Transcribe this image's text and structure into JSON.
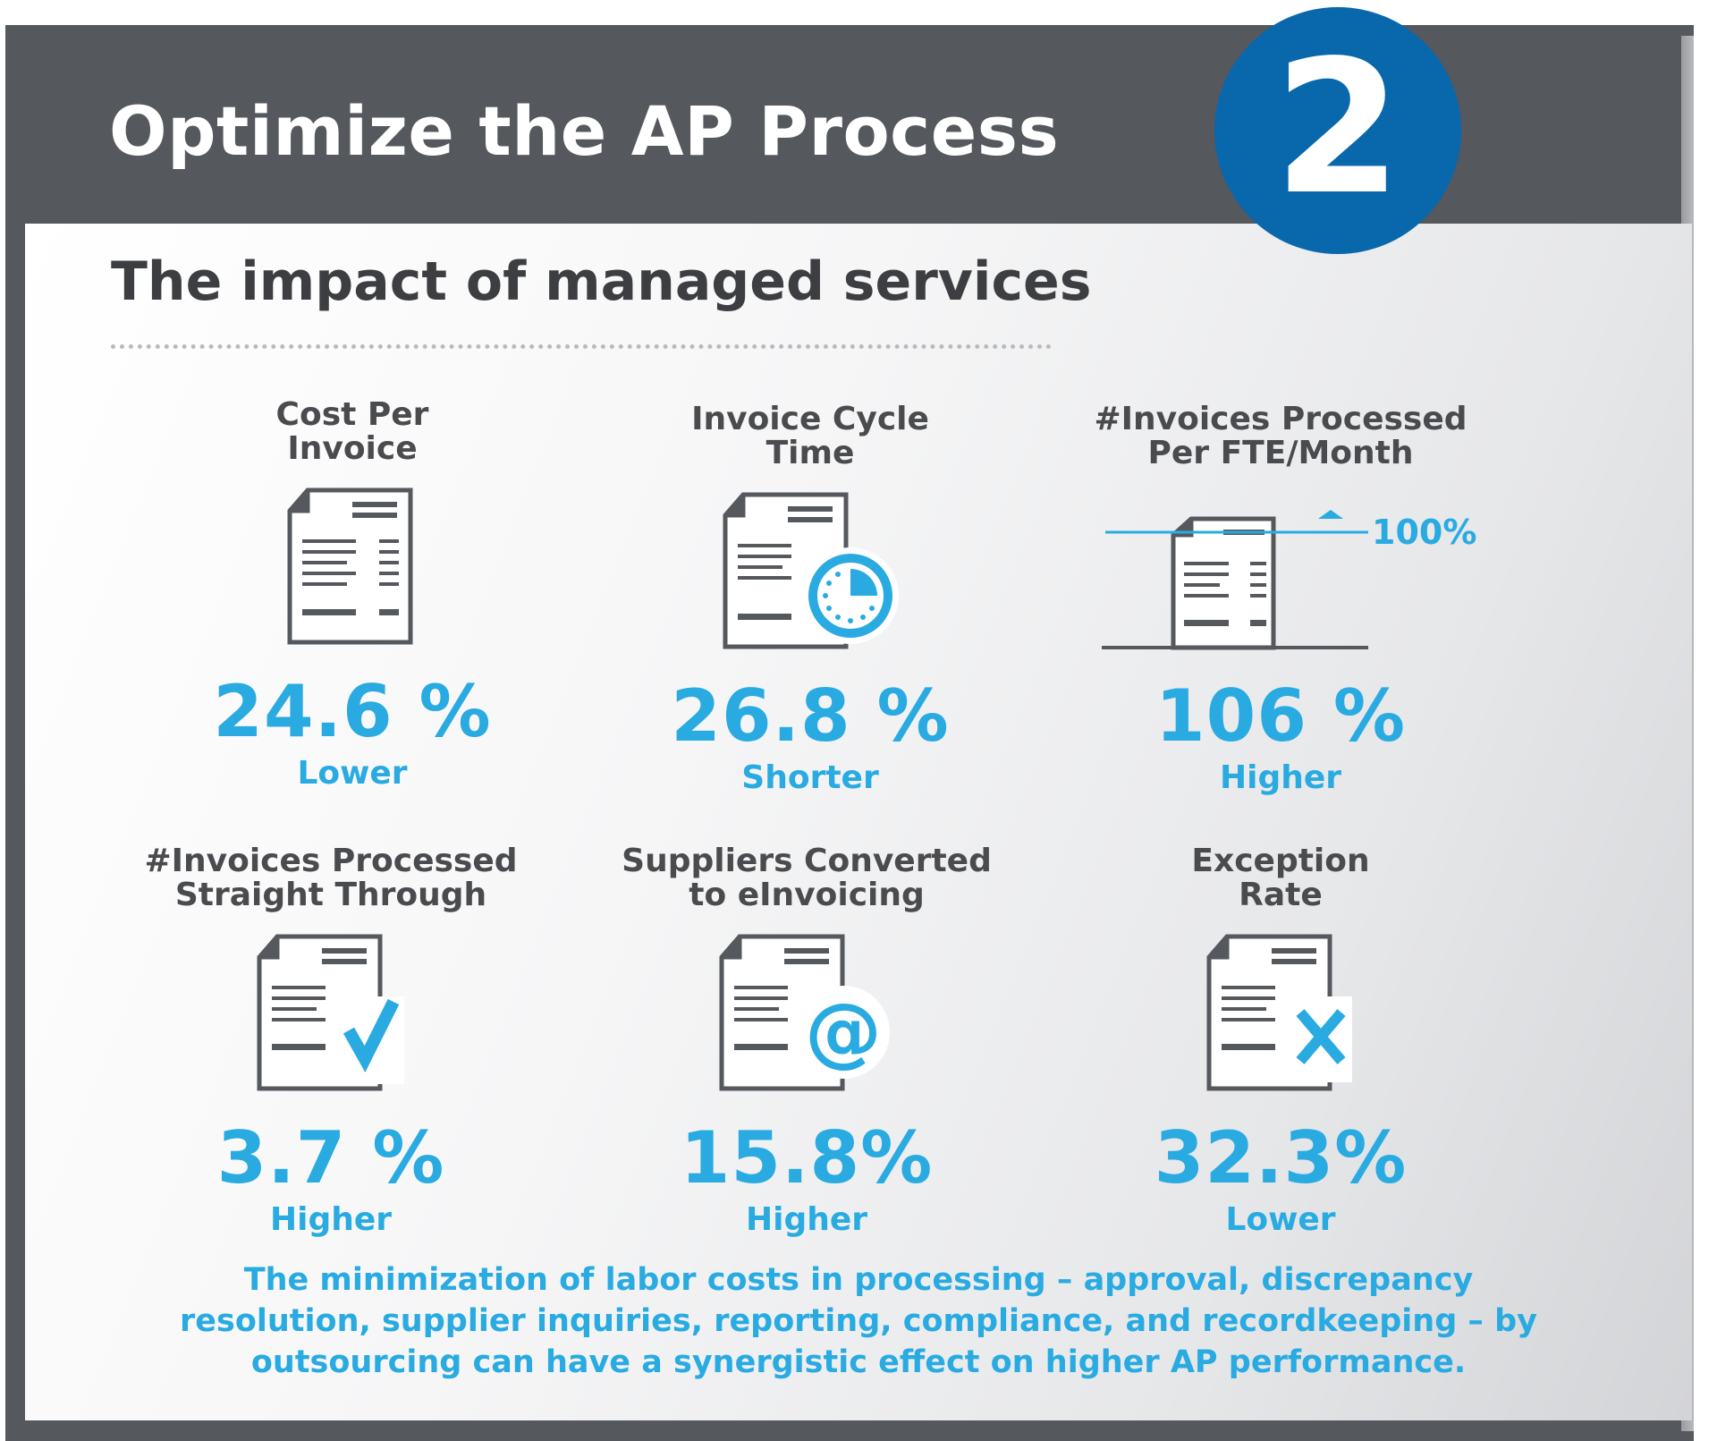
{
  "header": {
    "title": "Optimize the AP Process",
    "step_number": "2"
  },
  "subtitle": "The impact of managed services",
  "metrics": [
    {
      "label": "Cost Per\nInvoice",
      "value": "24.6 %",
      "direction": "Lower",
      "icon": "invoice-icon"
    },
    {
      "label": "Invoice Cycle\nTime",
      "value": "26.8 %",
      "direction": "Shorter",
      "icon": "invoice-clock-icon"
    },
    {
      "label": "#Invoices Processed\nPer FTE/Month",
      "value": "106 %",
      "direction": "Higher",
      "icon": "invoice-threshold-icon",
      "marker_label": "100%"
    },
    {
      "label": "#Invoices Processed\nStraight Through",
      "value": "3.7 %",
      "direction": "Higher",
      "icon": "invoice-check-icon"
    },
    {
      "label": "Suppliers Converted\nto eInvoicing",
      "value": "15.8%",
      "direction": "Higher",
      "icon": "invoice-at-icon"
    },
    {
      "label": "Exception\nRate",
      "value": "32.3%",
      "direction": "Lower",
      "icon": "invoice-x-icon"
    }
  ],
  "footer": "The minimization of labor costs in processing – approval, discrepancy resolution, supplier inquiries, reporting, compliance, and recordkeeping – by outsourcing can have a synergistic effect on higher AP performance.",
  "colors": {
    "frame": "#55585d",
    "badge": "#0967ac",
    "accent": "#29abe2",
    "heading": "#3d3e41",
    "icon_stroke": "#55585d"
  }
}
